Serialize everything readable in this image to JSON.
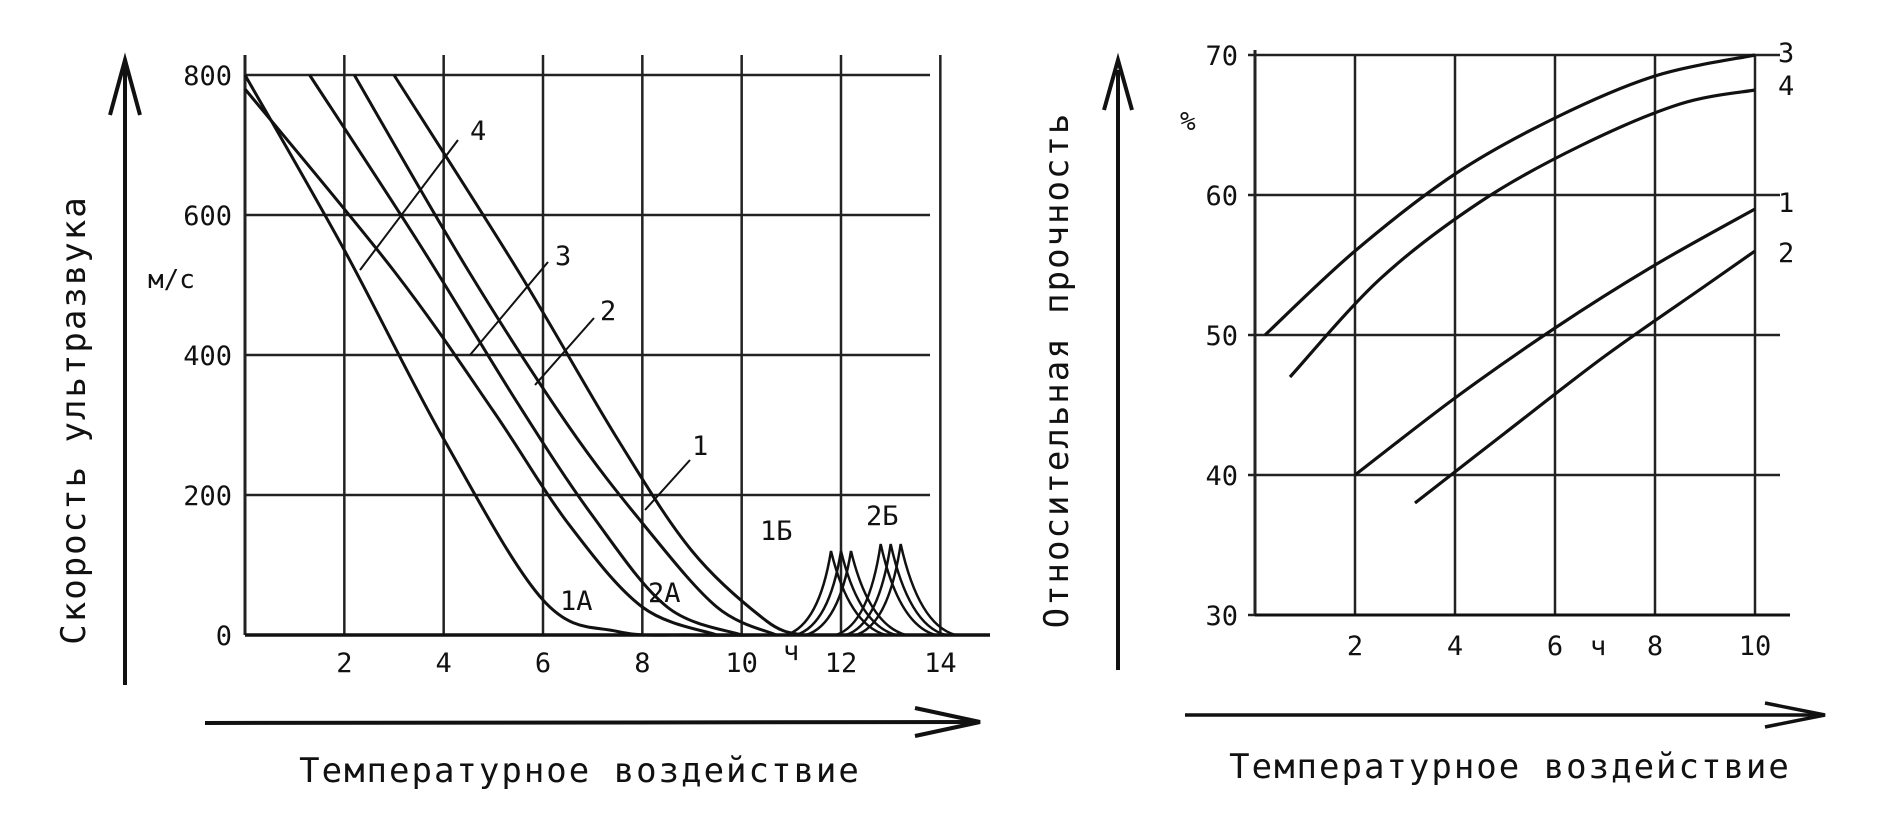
{
  "chart_data": [
    {
      "type": "line",
      "xlabel": "Температурное воздействие",
      "ylabel": "Скорость ультразвука",
      "yunit": "м/с",
      "xunit": "ч",
      "xlim": [
        0,
        15
      ],
      "ylim": [
        0,
        800
      ],
      "xticks": [
        2,
        4,
        6,
        8,
        10,
        12,
        14
      ],
      "yticks": [
        0,
        200,
        400,
        600,
        800
      ],
      "grid": true,
      "series": [
        {
          "name": "1",
          "x": [
            0,
            2,
            4,
            6,
            7.5,
            9,
            10.5
          ],
          "y": [
            800,
            550,
            280,
            50,
            5,
            0,
            0
          ]
        },
        {
          "name": "1",
          "x": [
            0,
            3,
            5,
            6.5,
            8,
            9.5
          ],
          "y": [
            780,
            520,
            320,
            160,
            40,
            0
          ]
        },
        {
          "name": "2",
          "x": [
            1.3,
            3.5,
            5.5,
            7,
            8.5,
            10
          ],
          "y": [
            800,
            560,
            330,
            170,
            40,
            0
          ]
        },
        {
          "name": "3",
          "x": [
            2.2,
            4.5,
            6.5,
            8,
            9.5,
            10.7
          ],
          "y": [
            800,
            520,
            300,
            160,
            40,
            0
          ]
        },
        {
          "name": "4",
          "x": [
            3,
            5.5,
            7.5,
            9,
            10.5,
            11.2
          ],
          "y": [
            800,
            520,
            280,
            120,
            20,
            0
          ]
        }
      ],
      "peaks": [
        {
          "name": "1Б",
          "x": 12,
          "height": 120
        },
        {
          "name": "2Б",
          "x": 13,
          "height": 130
        }
      ],
      "annotations": [
        "1А",
        "2А",
        "1Б",
        "2Б"
      ]
    },
    {
      "type": "line",
      "xlabel": "Температурное воздействие",
      "ylabel": "Относительная прочность",
      "yunit": "%",
      "xunit": "ч",
      "xlim": [
        0,
        10.5
      ],
      "ylim": [
        30,
        70
      ],
      "xticks": [
        2,
        4,
        6,
        8,
        10
      ],
      "yticks": [
        30,
        40,
        50,
        60,
        70
      ],
      "grid": true,
      "series": [
        {
          "name": "1",
          "x": [
            2,
            4,
            6,
            8,
            10
          ],
          "y": [
            40,
            45.5,
            50.5,
            55,
            59
          ]
        },
        {
          "name": "2",
          "x": [
            3.2,
            5,
            7,
            9,
            10
          ],
          "y": [
            38,
            43,
            48.5,
            53.5,
            56
          ]
        },
        {
          "name": "3",
          "x": [
            0.2,
            2,
            4,
            6,
            8,
            10
          ],
          "y": [
            50,
            56,
            61.5,
            65.5,
            68.5,
            70
          ]
        },
        {
          "name": "4",
          "x": [
            0.7,
            2.5,
            4.5,
            6.5,
            8.5,
            10
          ],
          "y": [
            47,
            54,
            59.5,
            63.5,
            66.5,
            67.5
          ]
        }
      ]
    }
  ]
}
